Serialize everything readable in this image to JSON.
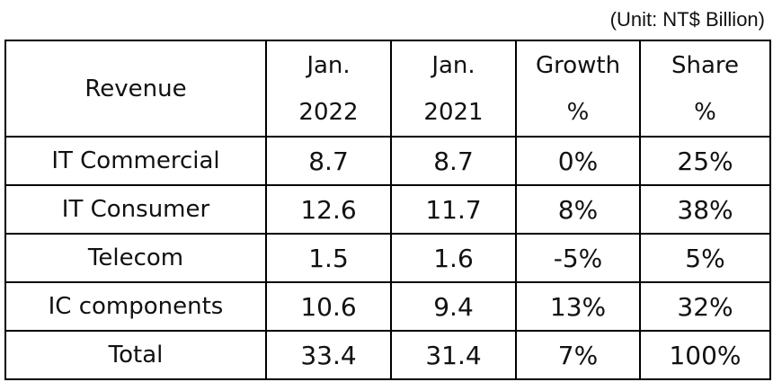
{
  "unit_note": "(Unit: NT$ Billion)",
  "header": {
    "revenue": "Revenue",
    "col_jan2022_line1": "Jan.",
    "col_jan2022_line2": "2022",
    "col_jan2021_line1": "Jan.",
    "col_jan2021_line2": "2021",
    "col_growth_line1": "Growth",
    "col_growth_line2": "%",
    "col_share_line1": "Share",
    "col_share_line2": "%"
  },
  "rows": [
    {
      "label": "IT Commercial",
      "jan2022": "8.7",
      "jan2021": "8.7",
      "growth": "0%",
      "share": "25%"
    },
    {
      "label": "IT Consumer",
      "jan2022": "12.6",
      "jan2021": "11.7",
      "growth": "8%",
      "share": "38%"
    },
    {
      "label": "Telecom",
      "jan2022": "1.5",
      "jan2021": "1.6",
      "growth": "-5%",
      "share": "5%"
    },
    {
      "label": "IC components",
      "jan2022": "10.6",
      "jan2021": "9.4",
      "growth": "13%",
      "share": "32%"
    },
    {
      "label": "Total",
      "jan2022": "33.4",
      "jan2021": "31.4",
      "growth": "7%",
      "share": "100%"
    }
  ]
}
